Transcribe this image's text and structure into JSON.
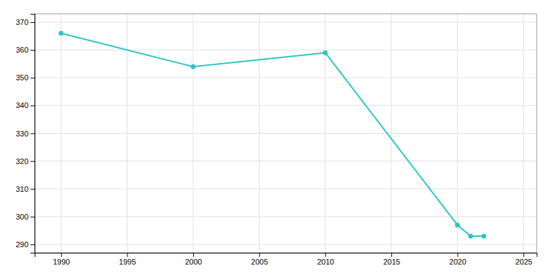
{
  "chart_data": {
    "type": "line",
    "x": [
      1990,
      2000,
      2010,
      2020,
      2021,
      2022
    ],
    "values": [
      366,
      354,
      359,
      297,
      293,
      293
    ],
    "color": "#2EC4C4",
    "marker": "circle",
    "xlim": [
      1988,
      2026
    ],
    "ylim": [
      287,
      373
    ],
    "xticks": [
      1990,
      1995,
      2000,
      2005,
      2010,
      2015,
      2020,
      2025
    ],
    "yticks": [
      290,
      300,
      310,
      320,
      330,
      340,
      350,
      360,
      370
    ],
    "grid": true
  }
}
